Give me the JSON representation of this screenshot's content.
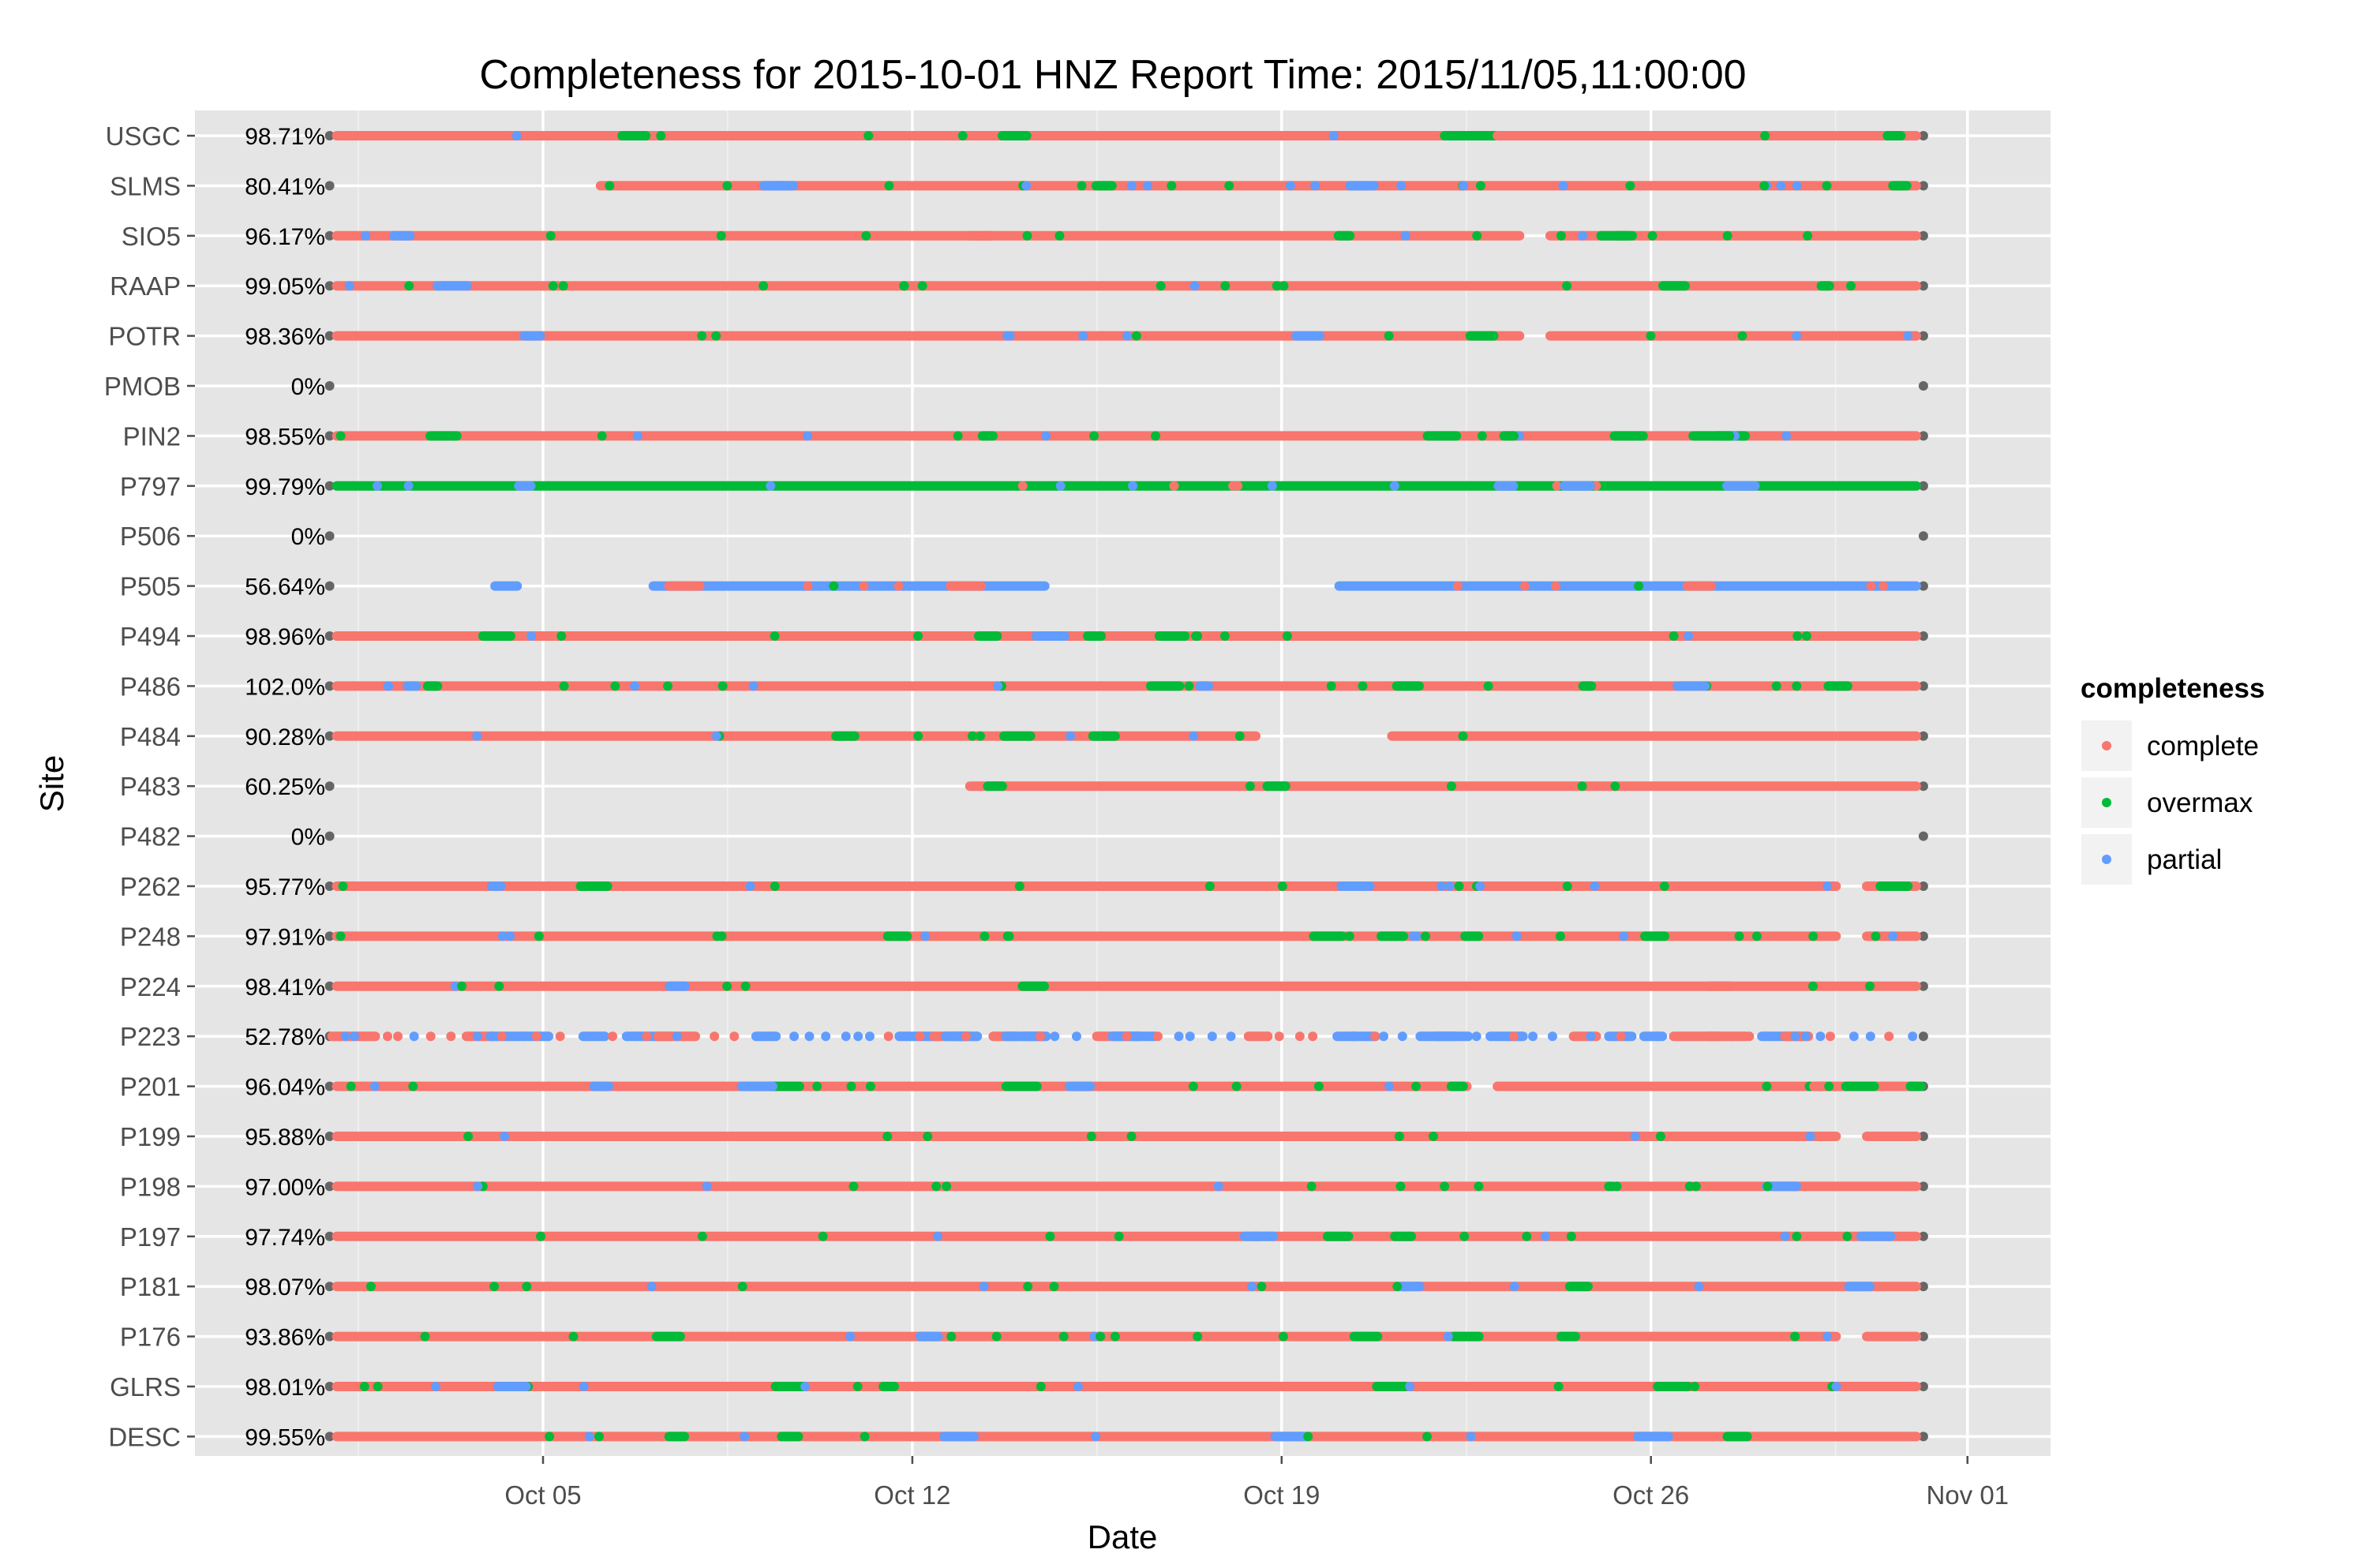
{
  "chart_data": {
    "type": "scatter",
    "title": "Completeness for  2015-10-01 HNZ  Report Time:  2015/11/05,11:00:00",
    "xlabel": "Date",
    "ylabel": "Site",
    "x_ticks": [
      "Oct 05",
      "Oct 12",
      "Oct 19",
      "Oct 26",
      "Nov 01"
    ],
    "x_range": [
      "2015-09-29",
      "2015-11-01"
    ],
    "grid": true,
    "legend": {
      "title": "completeness",
      "position": "right",
      "entries": [
        {
          "name": "complete",
          "color": "#F8766D"
        },
        {
          "name": "overmax",
          "color": "#00BA38"
        },
        {
          "name": "partial",
          "color": "#619CFF"
        }
      ]
    },
    "sites": [
      {
        "name": "USGC",
        "completeness_pct": "98.71%",
        "segments": [
          {
            "start": "2015-10-01",
            "end": "2015-10-22",
            "type": "complete"
          },
          {
            "start": "2015-10-22",
            "end": "2015-10-23",
            "type": "overmax"
          },
          {
            "start": "2015-10-23",
            "end": "2015-10-31",
            "type": "complete"
          }
        ]
      },
      {
        "name": "SLMS",
        "completeness_pct": "80.41%",
        "segments": [
          {
            "start": "2015-10-06",
            "end": "2015-10-31",
            "type": "complete"
          }
        ]
      },
      {
        "name": "SIO5",
        "completeness_pct": "96.17%",
        "segments": [
          {
            "start": "2015-10-01",
            "end": "2015-10-13",
            "type": "complete"
          },
          {
            "start": "2015-10-13",
            "end": "2015-10-23",
            "type": "complete"
          },
          {
            "start": "2015-10-24",
            "end": "2015-10-31",
            "type": "complete"
          }
        ]
      },
      {
        "name": "RAAP",
        "completeness_pct": "99.05%",
        "segments": [
          {
            "start": "2015-10-01",
            "end": "2015-10-31",
            "type": "complete"
          }
        ]
      },
      {
        "name": "POTR",
        "completeness_pct": "98.36%",
        "segments": [
          {
            "start": "2015-10-01",
            "end": "2015-10-23",
            "type": "complete"
          },
          {
            "start": "2015-10-24",
            "end": "2015-10-31",
            "type": "complete"
          }
        ]
      },
      {
        "name": "PMOB",
        "completeness_pct": "0%",
        "segments": []
      },
      {
        "name": "PIN2",
        "completeness_pct": "98.55%",
        "segments": [
          {
            "start": "2015-10-01",
            "end": "2015-10-23",
            "type": "complete"
          },
          {
            "start": "2015-10-23",
            "end": "2015-10-31",
            "type": "complete"
          }
        ]
      },
      {
        "name": "P797",
        "completeness_pct": "99.79%",
        "segments": [
          {
            "start": "2015-10-01",
            "end": "2015-10-31",
            "type": "overmax"
          }
        ]
      },
      {
        "name": "P506",
        "completeness_pct": "0%",
        "segments": []
      },
      {
        "name": "P505",
        "completeness_pct": "56.64%",
        "segments": [
          {
            "start": "2015-10-04",
            "end": "2015-10-04",
            "type": "partial"
          },
          {
            "start": "2015-10-07",
            "end": "2015-10-14",
            "type": "partial"
          },
          {
            "start": "2015-10-20",
            "end": "2015-10-31",
            "type": "partial"
          }
        ]
      },
      {
        "name": "P494",
        "completeness_pct": "98.96%",
        "segments": [
          {
            "start": "2015-10-01",
            "end": "2015-10-31",
            "type": "complete"
          }
        ]
      },
      {
        "name": "P486",
        "completeness_pct": "102.0%",
        "segments": [
          {
            "start": "2015-10-01",
            "end": "2015-10-31",
            "type": "complete"
          }
        ]
      },
      {
        "name": "P484",
        "completeness_pct": "90.28%",
        "segments": [
          {
            "start": "2015-10-01",
            "end": "2015-10-18",
            "type": "complete"
          },
          {
            "start": "2015-10-21",
            "end": "2015-10-31",
            "type": "complete"
          }
        ]
      },
      {
        "name": "P483",
        "completeness_pct": "60.25%",
        "segments": [
          {
            "start": "2015-10-13",
            "end": "2015-10-31",
            "type": "complete"
          }
        ]
      },
      {
        "name": "P482",
        "completeness_pct": "0%",
        "segments": []
      },
      {
        "name": "P262",
        "completeness_pct": "95.77%",
        "segments": [
          {
            "start": "2015-10-01",
            "end": "2015-10-29",
            "type": "complete"
          },
          {
            "start": "2015-10-30",
            "end": "2015-10-31",
            "type": "complete"
          }
        ]
      },
      {
        "name": "P248",
        "completeness_pct": "97.91%",
        "segments": [
          {
            "start": "2015-10-01",
            "end": "2015-10-29",
            "type": "complete"
          },
          {
            "start": "2015-10-30",
            "end": "2015-10-31",
            "type": "complete"
          }
        ]
      },
      {
        "name": "P224",
        "completeness_pct": "98.41%",
        "segments": [
          {
            "start": "2015-10-01",
            "end": "2015-10-27",
            "type": "complete"
          },
          {
            "start": "2015-10-27",
            "end": "2015-10-31",
            "type": "complete"
          }
        ]
      },
      {
        "name": "P223",
        "completeness_pct": "52.78%",
        "segments": [
          {
            "start": "2015-10-01",
            "end": "2015-10-31",
            "type": "partial"
          }
        ]
      },
      {
        "name": "P201",
        "completeness_pct": "96.04%",
        "segments": [
          {
            "start": "2015-10-01",
            "end": "2015-10-22",
            "type": "complete"
          },
          {
            "start": "2015-10-23",
            "end": "2015-10-29",
            "type": "complete"
          },
          {
            "start": "2015-10-29",
            "end": "2015-10-31",
            "type": "complete"
          }
        ]
      },
      {
        "name": "P199",
        "completeness_pct": "95.88%",
        "segments": [
          {
            "start": "2015-10-01",
            "end": "2015-10-29",
            "type": "complete"
          },
          {
            "start": "2015-10-30",
            "end": "2015-10-31",
            "type": "complete"
          }
        ]
      },
      {
        "name": "P198",
        "completeness_pct": "97.00%",
        "segments": [
          {
            "start": "2015-10-01",
            "end": "2015-10-31",
            "type": "complete"
          }
        ]
      },
      {
        "name": "P197",
        "completeness_pct": "97.74%",
        "segments": [
          {
            "start": "2015-10-01",
            "end": "2015-10-31",
            "type": "complete"
          }
        ]
      },
      {
        "name": "P181",
        "completeness_pct": "98.07%",
        "segments": [
          {
            "start": "2015-10-01",
            "end": "2015-10-31",
            "type": "complete"
          }
        ]
      },
      {
        "name": "P176",
        "completeness_pct": "93.86%",
        "segments": [
          {
            "start": "2015-10-01",
            "end": "2015-10-29",
            "type": "complete"
          },
          {
            "start": "2015-10-30",
            "end": "2015-10-31",
            "type": "complete"
          }
        ]
      },
      {
        "name": "GLRS",
        "completeness_pct": "98.01%",
        "segments": [
          {
            "start": "2015-10-01",
            "end": "2015-10-31",
            "type": "complete"
          }
        ]
      },
      {
        "name": "DESC",
        "completeness_pct": "99.55%",
        "segments": [
          {
            "start": "2015-10-01",
            "end": "2015-10-31",
            "type": "complete"
          }
        ]
      }
    ]
  }
}
